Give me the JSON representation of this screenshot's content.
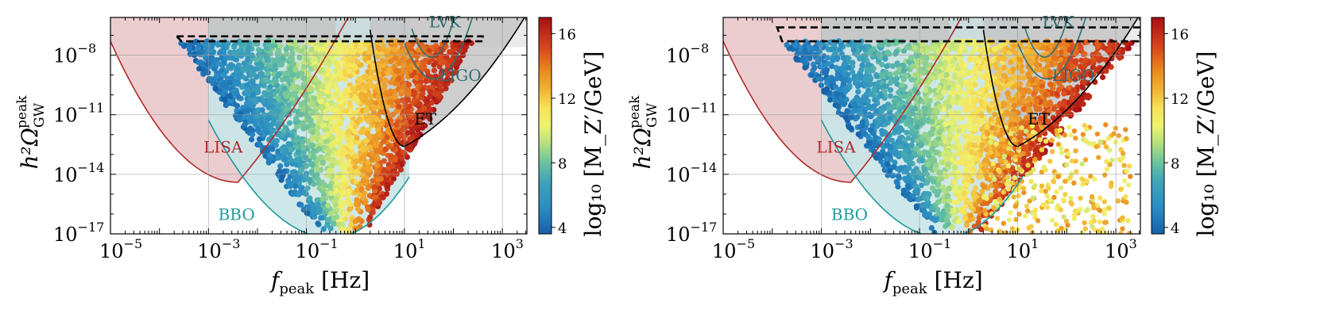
{
  "colors": {
    "lisa": "#b02a2a",
    "lisa_fill": "#e8c4c8",
    "bbo": "#1e9a9a",
    "bbo_fill": "#c9e6e8",
    "lvk": "#2f6f73",
    "ligo": "#2f6f73",
    "et": "#000000",
    "grey_fill": "#c6c6c6",
    "dashed": "#000000"
  },
  "colorbar": {
    "label": "log₁₀ [M_Z′/GeV]",
    "ticks": [
      "4",
      "8",
      "12",
      "16"
    ],
    "range": [
      3.6,
      17
    ]
  },
  "chart_data": [
    {
      "type": "scatter",
      "panel": "left",
      "xlabel": "f_peak [Hz]",
      "ylabel": "h²Ω_GW^peak",
      "x_scale": "log",
      "y_scale": "log",
      "xlim_log10": [
        -5,
        3.5
      ],
      "ylim_log10": [
        -17,
        -6.1
      ],
      "x_tick_labels": [
        "10^-5",
        "10^-3",
        "10^-1",
        "10^1",
        "10^3"
      ],
      "y_tick_labels": [
        "10^-17",
        "10^-14",
        "10^-11",
        "10^-8"
      ],
      "grid": true,
      "detectors": [
        {
          "name": "LISA",
          "min_log10_f": -2.4,
          "min_log10_omega": -14.4
        },
        {
          "name": "BBO",
          "min_log10_f": -0.5,
          "min_log10_omega": -17.2
        },
        {
          "name": "ET",
          "min_log10_f": 1.0,
          "min_log10_omega": -12.6
        },
        {
          "name": "LIGO",
          "min_log10_f": 1.6,
          "min_log10_omega": -9.2
        },
        {
          "name": "LVK",
          "min_log10_f": 1.5,
          "min_log10_omega": -8.1
        }
      ],
      "dashed_region_log10_f": [
        -3.65,
        2.6
      ],
      "dashed_region_log10_omega": [
        -7.3,
        -7.05
      ],
      "points_wedge": {
        "apex_log10_f": -0.3,
        "apex_log10_omega": -17.0,
        "top_log10_omega": -7.3,
        "left_top_log10_f": -3.6,
        "right_top_log10_f": 2.4,
        "mass_left": 4,
        "mass_right": 16.5
      }
    },
    {
      "type": "scatter",
      "panel": "right",
      "xlabel": "f_peak [Hz]",
      "ylabel": "h²Ω_GW^peak",
      "x_scale": "log",
      "y_scale": "log",
      "xlim_log10": [
        -5,
        3.5
      ],
      "ylim_log10": [
        -17,
        -6.1
      ],
      "x_tick_labels": [
        "10^-5",
        "10^-3",
        "10^-1",
        "10^1",
        "10^3"
      ],
      "y_tick_labels": [
        "10^-17",
        "10^-14",
        "10^-11",
        "10^-8"
      ],
      "grid": true,
      "detectors": [
        {
          "name": "LISA",
          "min_log10_f": -2.4,
          "min_log10_omega": -14.4
        },
        {
          "name": "BBO",
          "min_log10_f": -0.5,
          "min_log10_omega": -17.2
        },
        {
          "name": "ET",
          "min_log10_f": 1.0,
          "min_log10_omega": -12.6
        },
        {
          "name": "LIGO",
          "min_log10_f": 1.6,
          "min_log10_omega": -9.2
        },
        {
          "name": "LVK",
          "min_log10_f": 1.5,
          "min_log10_omega": -8.1
        }
      ],
      "dashed_region_log10_f": [
        -3.9,
        3.5
      ],
      "dashed_region_log10_omega": [
        -7.3,
        -6.6
      ],
      "points_wedge": {
        "apex_log10_f": -0.3,
        "apex_log10_omega": -17.0,
        "top_log10_omega": -7.3,
        "left_top_log10_f": -3.8,
        "right_top_log10_f": 3.4,
        "mass_left": 4,
        "mass_right": 16.5
      }
    }
  ]
}
